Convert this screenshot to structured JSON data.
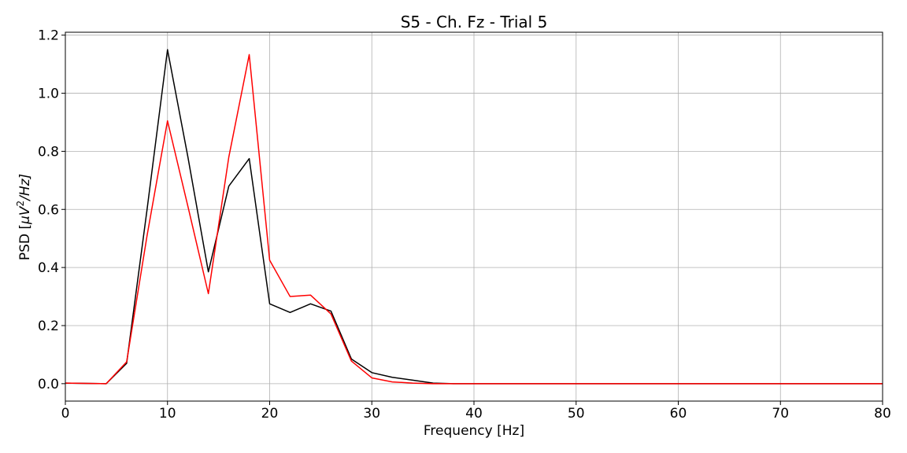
{
  "chart_data": {
    "type": "line",
    "title": "S5 - Ch. Fz - Trial 5",
    "xlabel": "Frequency [Hz]",
    "ylabel_prefix": "PSD [",
    "ylabel_mu": "μ",
    "ylabel_v": "V",
    "ylabel_exp": "2",
    "ylabel_suffix": "/Hz]",
    "xlim": [
      0,
      80
    ],
    "ylim": [
      -0.06,
      1.21
    ],
    "grid": true,
    "legend": false,
    "x_ticks": [
      0,
      10,
      20,
      30,
      40,
      50,
      60,
      70,
      80
    ],
    "x_tick_labels": [
      "0",
      "10",
      "20",
      "30",
      "40",
      "50",
      "60",
      "70",
      "80"
    ],
    "y_ticks": [
      0.0,
      0.2,
      0.4,
      0.6,
      0.8,
      1.0,
      1.2
    ],
    "y_tick_labels": [
      "0.0",
      "0.2",
      "0.4",
      "0.6",
      "0.8",
      "1.0",
      "1.2"
    ],
    "x": [
      0,
      2,
      4,
      6,
      8,
      10,
      12,
      14,
      16,
      18,
      20,
      22,
      24,
      26,
      28,
      30,
      32,
      34,
      36,
      38,
      40,
      42,
      44,
      46,
      48,
      50,
      52,
      54,
      56,
      58,
      60,
      62,
      64,
      66,
      68,
      70,
      72,
      74,
      76,
      78,
      80
    ],
    "series": [
      {
        "color": "#000000",
        "values": [
          0.002,
          0.001,
          0.0,
          0.07,
          0.6,
          1.15,
          0.78,
          0.385,
          0.68,
          0.775,
          0.275,
          0.245,
          0.275,
          0.25,
          0.085,
          0.038,
          0.022,
          0.012,
          0.002,
          0.0,
          0.0,
          0.0,
          0.0,
          0.0,
          0.0,
          0.0,
          0.0,
          0.0,
          0.0,
          0.0,
          0.0,
          0.0,
          0.0,
          0.0,
          0.0,
          0.0,
          0.0,
          0.0,
          0.0,
          0.0,
          0.0
        ]
      },
      {
        "color": "#ff0000",
        "values": [
          0.002,
          0.001,
          0.0,
          0.075,
          0.51,
          0.905,
          0.61,
          0.31,
          0.78,
          1.133,
          0.425,
          0.3,
          0.305,
          0.24,
          0.078,
          0.02,
          0.006,
          0.002,
          0.0,
          0.0,
          0.0,
          0.0,
          0.0,
          0.0,
          0.0,
          0.0,
          0.0,
          0.0,
          0.0,
          0.0,
          0.0,
          0.0,
          0.0,
          0.0,
          0.0,
          0.0,
          0.0,
          0.0,
          0.0,
          0.0,
          0.0
        ]
      }
    ]
  }
}
